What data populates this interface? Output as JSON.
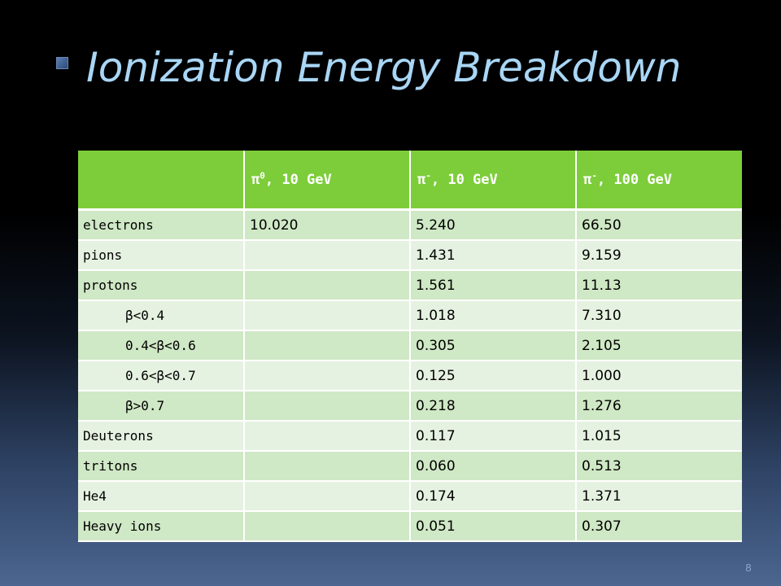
{
  "slide": {
    "title": "Ionization Energy Breakdown",
    "page_number": "8"
  },
  "table": {
    "headers": [
      "",
      {
        "sym": "π",
        "sup": "0",
        "rest": ", 10 GeV"
      },
      {
        "sym": "π",
        "sup": "-",
        "rest": ", 10 GeV"
      },
      {
        "sym": "π",
        "sup": "-",
        "rest": ", 100 GeV"
      }
    ],
    "rows": [
      {
        "label": "electrons",
        "indent": false,
        "values": [
          "10.020",
          "5.240",
          "66.50"
        ]
      },
      {
        "label": "pions",
        "indent": false,
        "values": [
          "",
          "1.431",
          "9.159"
        ]
      },
      {
        "label": "protons",
        "indent": false,
        "values": [
          "",
          "1.561",
          "11.13"
        ]
      },
      {
        "label": "β<0.4",
        "indent": true,
        "values": [
          "",
          "1.018",
          "7.310"
        ]
      },
      {
        "label": "0.4<β<0.6",
        "indent": true,
        "values": [
          "",
          "0.305",
          "2.105"
        ]
      },
      {
        "label": "0.6<β<0.7",
        "indent": true,
        "values": [
          "",
          "0.125",
          "1.000"
        ]
      },
      {
        "label": "β>0.7",
        "indent": true,
        "values": [
          "",
          "0.218",
          "1.276"
        ]
      },
      {
        "label": "Deuterons",
        "indent": false,
        "values": [
          "",
          "0.117",
          "1.015"
        ]
      },
      {
        "label": "tritons",
        "indent": false,
        "values": [
          "",
          "0.060",
          "0.513"
        ]
      },
      {
        "label": "He4",
        "indent": false,
        "values": [
          "",
          "0.174",
          "1.371"
        ]
      },
      {
        "label": "Heavy ions",
        "indent": false,
        "values": [
          "",
          "0.051",
          "0.307"
        ]
      }
    ]
  },
  "colors": {
    "title": "#a9d6f5",
    "header_bg": "#7dcd3a",
    "row_odd": "#cfe8c5",
    "row_even": "#e6f2e1"
  }
}
